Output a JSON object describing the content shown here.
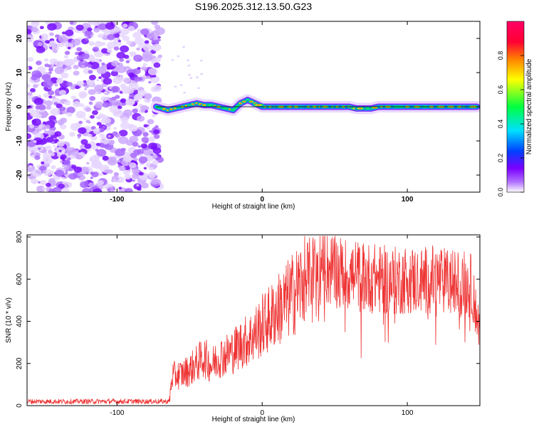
{
  "title": "S196.2025.312.13.50.G23",
  "colorbar": {
    "label": "Normalized spectral amplitude",
    "ticks": [
      0.0,
      0.2,
      0.4,
      0.6,
      0.8
    ],
    "tick_labels": [
      "0.0",
      "0.2",
      "0.4",
      "0.6",
      "0.8"
    ],
    "range": [
      0,
      1
    ],
    "colors": [
      "#ffffff",
      "#7b00ff",
      "#0040ff",
      "#00e0ff",
      "#00ff40",
      "#ffff00",
      "#ff8000",
      "#ff0033",
      "#ff0066"
    ]
  },
  "chart_data": [
    {
      "type": "heatmap",
      "name": "spectrogram",
      "xlabel": "Height of straight line (km)",
      "ylabel": "Frequency (Hz)",
      "xlim": [
        -162,
        150
      ],
      "ylim": [
        -25,
        25
      ],
      "xticks": [
        -100,
        0,
        100
      ],
      "xtick_labels": [
        "-100",
        "0",
        "100"
      ],
      "yticks": [
        -20,
        -10,
        0,
        10,
        20
      ],
      "ytick_labels": [
        "-20",
        "-10",
        "0",
        "10",
        "20"
      ],
      "noise_region_x": [
        -162,
        -73
      ],
      "signal_track": {
        "x": [
          -73,
          -65,
          -60,
          -55,
          -50,
          -45,
          -40,
          -35,
          -30,
          -25,
          -20,
          -15,
          -10,
          -5,
          0,
          10,
          20,
          30,
          40,
          50,
          55,
          60,
          65,
          70,
          75,
          80,
          90,
          100,
          110,
          120,
          130,
          140,
          148
        ],
        "y": [
          0,
          -1,
          -0.5,
          0,
          0.5,
          1,
          0.5,
          0.5,
          0,
          -0.5,
          -1,
          1,
          2,
          1,
          0,
          0,
          0,
          0,
          0,
          0,
          0,
          0,
          -0.5,
          -0.5,
          -0.5,
          0,
          0,
          0,
          0,
          0,
          0,
          0,
          0
        ]
      },
      "reference_line_y": 0
    },
    {
      "type": "line",
      "name": "snr",
      "xlabel": "Height of straight line (km)",
      "ylabel": "SNR (10 * v/v)",
      "xlim": [
        -162,
        150
      ],
      "ylim": [
        0,
        810
      ],
      "xticks": [
        -100,
        0,
        100
      ],
      "xtick_labels": [
        "-100",
        "0",
        "100"
      ],
      "yticks": [
        0,
        200,
        400,
        600,
        800
      ],
      "ytick_labels": [
        "0",
        "200",
        "400",
        "600",
        "800"
      ],
      "color": "#ee3333",
      "series": [
        {
          "name": "SNR",
          "x": [
            -162,
            -140,
            -120,
            -100,
            -80,
            -64,
            -62,
            -55,
            -50,
            -45,
            -40,
            -35,
            -30,
            -25,
            -20,
            -15,
            -10,
            -5,
            0,
            5,
            10,
            15,
            20,
            25,
            30,
            35,
            40,
            45,
            50,
            60,
            70,
            80,
            90,
            100,
            110,
            120,
            130,
            140,
            145,
            148,
            150
          ],
          "y": [
            20,
            20,
            20,
            20,
            20,
            20,
            140,
            150,
            170,
            200,
            230,
            190,
            230,
            240,
            260,
            290,
            310,
            340,
            380,
            410,
            450,
            480,
            520,
            560,
            610,
            640,
            660,
            650,
            640,
            620,
            610,
            600,
            590,
            600,
            590,
            600,
            580,
            580,
            560,
            420,
            350
          ]
        }
      ]
    }
  ]
}
